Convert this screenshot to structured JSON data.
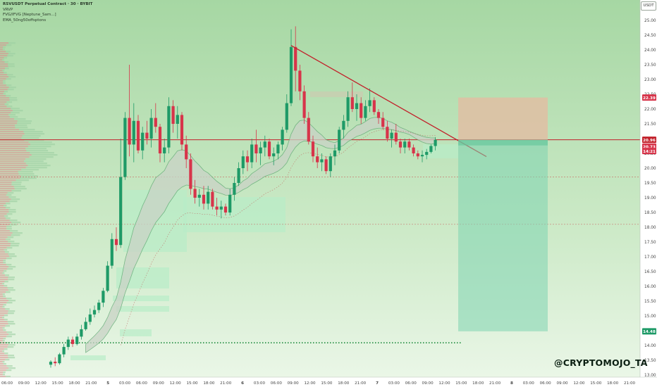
{
  "legend": {
    "symbol_line": "RSVUSDT Perpetual Contract · 30 · BYBIT",
    "indicators": [
      "VRVP",
      "FVG/IFVG [Neptune_Sam...]",
      "EMA_50ng50offsptons"
    ]
  },
  "watermark": "@CRYPTOMOJO_TA",
  "currency_badge": "USDT",
  "colors": {
    "background_top": "#a8d8a6",
    "background_bottom": "#eaf6e6",
    "bull": "#1e9a67",
    "bear": "#d7344a",
    "resistance": "#c2202a",
    "trendline": "#c2202a",
    "support_dotted": "#1a8a3a",
    "target_zone": "#7ed4b0",
    "stop_zone": "#e8b8a0"
  },
  "chart_data": {
    "type": "candlestick",
    "title": "RSVUSDT Perpetual Contract · 30 · BYBIT",
    "y_axis": {
      "min": 13.0,
      "max": 25.5,
      "ticks": [
        "25.50",
        "25.00",
        "24.50",
        "24.00",
        "23.50",
        "23.00",
        "22.50",
        "22.00",
        "21.50",
        "21.00",
        "20.50",
        "20.00",
        "19.50",
        "19.00",
        "18.50",
        "18.00",
        "17.50",
        "17.00",
        "16.50",
        "16.00",
        "15.50",
        "15.00",
        "14.50",
        "14.00",
        "13.50",
        "13.00"
      ],
      "price_labels": [
        {
          "value": 22.39,
          "text": "22.39",
          "color": "#d7344a"
        },
        {
          "value": 20.96,
          "text": "20.96",
          "color": "#c2202a"
        },
        {
          "value": 20.73,
          "text": "20.73",
          "color": "#d7344a"
        },
        {
          "value": 20.58,
          "text": "14:21",
          "color": "#d7344a"
        },
        {
          "value": 14.48,
          "text": "14.48",
          "color": "#1e9a67"
        }
      ]
    },
    "x_axis": {
      "tick_labels": [
        "06:00",
        "09:00",
        "12:00",
        "15:00",
        "18:00",
        "21:00",
        "5",
        "03:00",
        "06:00",
        "09:00",
        "12:00",
        "15:00",
        "18:00",
        "21:00",
        "6",
        "03:00",
        "06:00",
        "09:00",
        "12:00",
        "15:00",
        "18:00",
        "21:00",
        "7",
        "03:00",
        "06:00",
        "09:00",
        "12:00",
        "15:00",
        "18:00",
        "21:00",
        "8",
        "03:00",
        "06:00",
        "09:00",
        "12:00",
        "15:00",
        "18:00",
        "21:00"
      ]
    },
    "candles": [
      [
        13.35,
        13.5,
        13.25,
        13.45
      ],
      [
        13.45,
        13.6,
        13.3,
        13.4
      ],
      [
        13.4,
        13.75,
        13.35,
        13.7
      ],
      [
        13.7,
        14.05,
        13.6,
        13.95
      ],
      [
        13.95,
        14.3,
        13.85,
        14.2
      ],
      [
        14.2,
        14.3,
        13.95,
        14.05
      ],
      [
        14.05,
        14.4,
        14.0,
        14.3
      ],
      [
        14.3,
        14.7,
        14.2,
        14.55
      ],
      [
        14.55,
        14.95,
        14.5,
        14.8
      ],
      [
        14.8,
        15.25,
        14.7,
        15.05
      ],
      [
        15.05,
        15.35,
        14.95,
        15.2
      ],
      [
        15.2,
        15.55,
        15.1,
        15.45
      ],
      [
        15.45,
        15.95,
        15.3,
        15.85
      ],
      [
        15.85,
        16.85,
        15.8,
        16.7
      ],
      [
        16.7,
        17.8,
        16.6,
        17.6
      ],
      [
        17.6,
        18.0,
        17.2,
        17.4
      ],
      [
        17.4,
        21.0,
        17.3,
        19.7
      ],
      [
        19.7,
        21.9,
        19.6,
        21.7
      ],
      [
        21.7,
        23.5,
        20.4,
        20.8
      ],
      [
        20.8,
        22.2,
        20.2,
        21.6
      ],
      [
        21.6,
        21.8,
        20.5,
        20.6
      ],
      [
        20.6,
        21.4,
        20.3,
        21.2
      ],
      [
        21.2,
        21.6,
        20.8,
        21.0
      ],
      [
        21.0,
        22.0,
        20.7,
        21.7
      ],
      [
        21.7,
        22.2,
        21.2,
        21.4
      ],
      [
        21.4,
        21.5,
        20.2,
        20.5
      ],
      [
        20.5,
        21.0,
        20.2,
        20.7
      ],
      [
        20.7,
        22.4,
        20.5,
        22.1
      ],
      [
        22.1,
        22.3,
        21.2,
        21.5
      ],
      [
        21.5,
        22.1,
        21.0,
        21.8
      ],
      [
        21.8,
        21.9,
        20.6,
        20.8
      ],
      [
        20.8,
        21.1,
        20.0,
        20.3
      ],
      [
        20.3,
        20.5,
        19.1,
        19.3
      ],
      [
        19.3,
        19.6,
        18.8,
        19.0
      ],
      [
        19.0,
        19.3,
        18.7,
        19.1
      ],
      [
        19.1,
        19.4,
        18.6,
        18.8
      ],
      [
        18.8,
        19.4,
        18.6,
        19.2
      ],
      [
        19.2,
        19.3,
        18.6,
        18.7
      ],
      [
        18.7,
        19.0,
        18.4,
        18.6
      ],
      [
        18.6,
        18.9,
        18.3,
        18.7
      ],
      [
        18.7,
        18.8,
        18.4,
        18.5
      ],
      [
        18.5,
        19.3,
        18.4,
        19.1
      ],
      [
        19.1,
        19.7,
        18.9,
        19.5
      ],
      [
        19.5,
        20.2,
        19.4,
        20.0
      ],
      [
        20.0,
        20.6,
        19.8,
        20.4
      ],
      [
        20.4,
        20.6,
        19.9,
        20.2
      ],
      [
        20.2,
        21.0,
        20.0,
        20.8
      ],
      [
        20.8,
        21.3,
        20.2,
        20.5
      ],
      [
        20.5,
        20.9,
        20.1,
        20.7
      ],
      [
        20.7,
        21.1,
        20.4,
        20.9
      ],
      [
        20.9,
        21.0,
        20.3,
        20.4
      ],
      [
        20.4,
        20.7,
        20.1,
        20.5
      ],
      [
        20.5,
        20.9,
        20.3,
        20.8
      ],
      [
        20.8,
        21.4,
        20.6,
        21.3
      ],
      [
        21.3,
        22.5,
        21.2,
        22.2
      ],
      [
        22.2,
        24.7,
        22.1,
        24.1
      ],
      [
        24.1,
        24.8,
        22.6,
        23.3
      ],
      [
        23.3,
        23.5,
        22.3,
        22.6
      ],
      [
        22.6,
        22.8,
        21.5,
        21.7
      ],
      [
        21.7,
        21.9,
        20.8,
        20.9
      ],
      [
        20.9,
        21.1,
        20.2,
        20.4
      ],
      [
        20.4,
        20.7,
        20.0,
        20.2
      ],
      [
        20.2,
        20.5,
        19.9,
        20.3
      ],
      [
        20.3,
        20.4,
        19.8,
        19.9
      ],
      [
        19.9,
        20.5,
        19.7,
        20.4
      ],
      [
        20.4,
        20.8,
        20.1,
        20.6
      ],
      [
        20.6,
        21.4,
        20.5,
        21.3
      ],
      [
        21.3,
        21.8,
        21.0,
        21.6
      ],
      [
        21.6,
        22.6,
        21.4,
        22.4
      ],
      [
        22.4,
        22.9,
        21.9,
        22.0
      ],
      [
        22.0,
        22.5,
        21.6,
        22.2
      ],
      [
        22.2,
        22.4,
        21.5,
        21.7
      ],
      [
        21.7,
        22.3,
        21.6,
        22.1
      ],
      [
        22.1,
        22.7,
        21.9,
        22.3
      ],
      [
        22.3,
        22.4,
        21.8,
        21.9
      ],
      [
        21.9,
        22.0,
        21.5,
        21.7
      ],
      [
        21.7,
        21.9,
        21.3,
        21.4
      ],
      [
        21.4,
        21.6,
        20.9,
        21.0
      ],
      [
        21.0,
        21.3,
        20.7,
        21.2
      ],
      [
        21.2,
        21.5,
        20.8,
        20.9
      ],
      [
        20.9,
        21.0,
        20.5,
        20.7
      ],
      [
        20.7,
        21.0,
        20.5,
        20.9
      ],
      [
        20.9,
        21.0,
        20.6,
        20.7
      ],
      [
        20.7,
        20.8,
        20.4,
        20.5
      ],
      [
        20.5,
        20.6,
        20.3,
        20.4
      ],
      [
        20.4,
        20.6,
        20.2,
        20.45
      ],
      [
        20.45,
        20.65,
        20.3,
        20.55
      ],
      [
        20.55,
        20.8,
        20.5,
        20.75
      ],
      [
        20.75,
        21.05,
        20.6,
        20.96
      ]
    ],
    "resistance_level": 20.96,
    "support_level": 14.09,
    "dashed_levels": [
      19.7,
      18.1
    ],
    "trendline": {
      "from": {
        "candle": 55,
        "price": 24.15
      },
      "to": {
        "candle": 94,
        "price": 20.63
      }
    },
    "position": {
      "entry": 20.96,
      "stop": 22.39,
      "target": 14.48,
      "direction": "short"
    }
  }
}
